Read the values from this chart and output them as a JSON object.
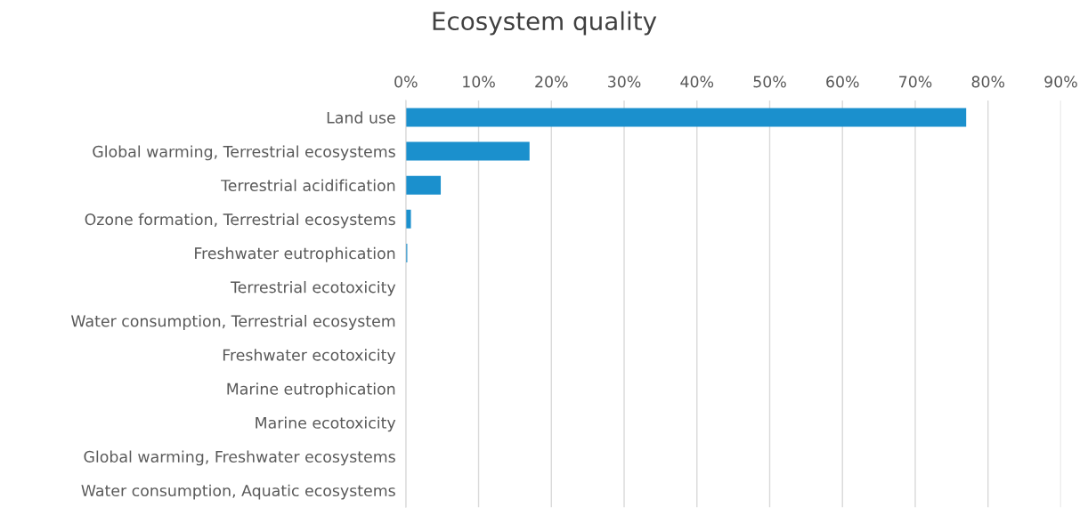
{
  "chart_data": {
    "type": "bar",
    "orientation": "horizontal",
    "title": "Ecosystem quality",
    "categories": [
      "Land use",
      "Global warming, Terrestrial ecosystems",
      "Terrestrial acidification",
      "Ozone formation, Terrestrial ecosystems",
      "Freshwater eutrophication",
      "Terrestrial ecotoxicity",
      "Water consumption, Terrestrial ecosystem",
      "Freshwater ecotoxicity",
      "Marine eutrophication",
      "Marine ecotoxicity",
      "Global warming, Freshwater ecosystems",
      "Water consumption, Aquatic ecosystems"
    ],
    "values": [
      77,
      17,
      4.8,
      0.7,
      0.2,
      0,
      0,
      0,
      0,
      0,
      0,
      0
    ],
    "color": "#1b90cd",
    "xlim": [
      0,
      90
    ],
    "xticks": [
      {
        "value": 0,
        "label": "0%"
      },
      {
        "value": 10,
        "label": "10%"
      },
      {
        "value": 20,
        "label": "20%"
      },
      {
        "value": 30,
        "label": "30%"
      },
      {
        "value": 40,
        "label": "40%"
      },
      {
        "value": 50,
        "label": "50%"
      },
      {
        "value": 60,
        "label": "60%"
      },
      {
        "value": 70,
        "label": "70%"
      },
      {
        "value": 80,
        "label": "80%"
      },
      {
        "value": 90,
        "label": "90%"
      }
    ],
    "grid": "x"
  }
}
